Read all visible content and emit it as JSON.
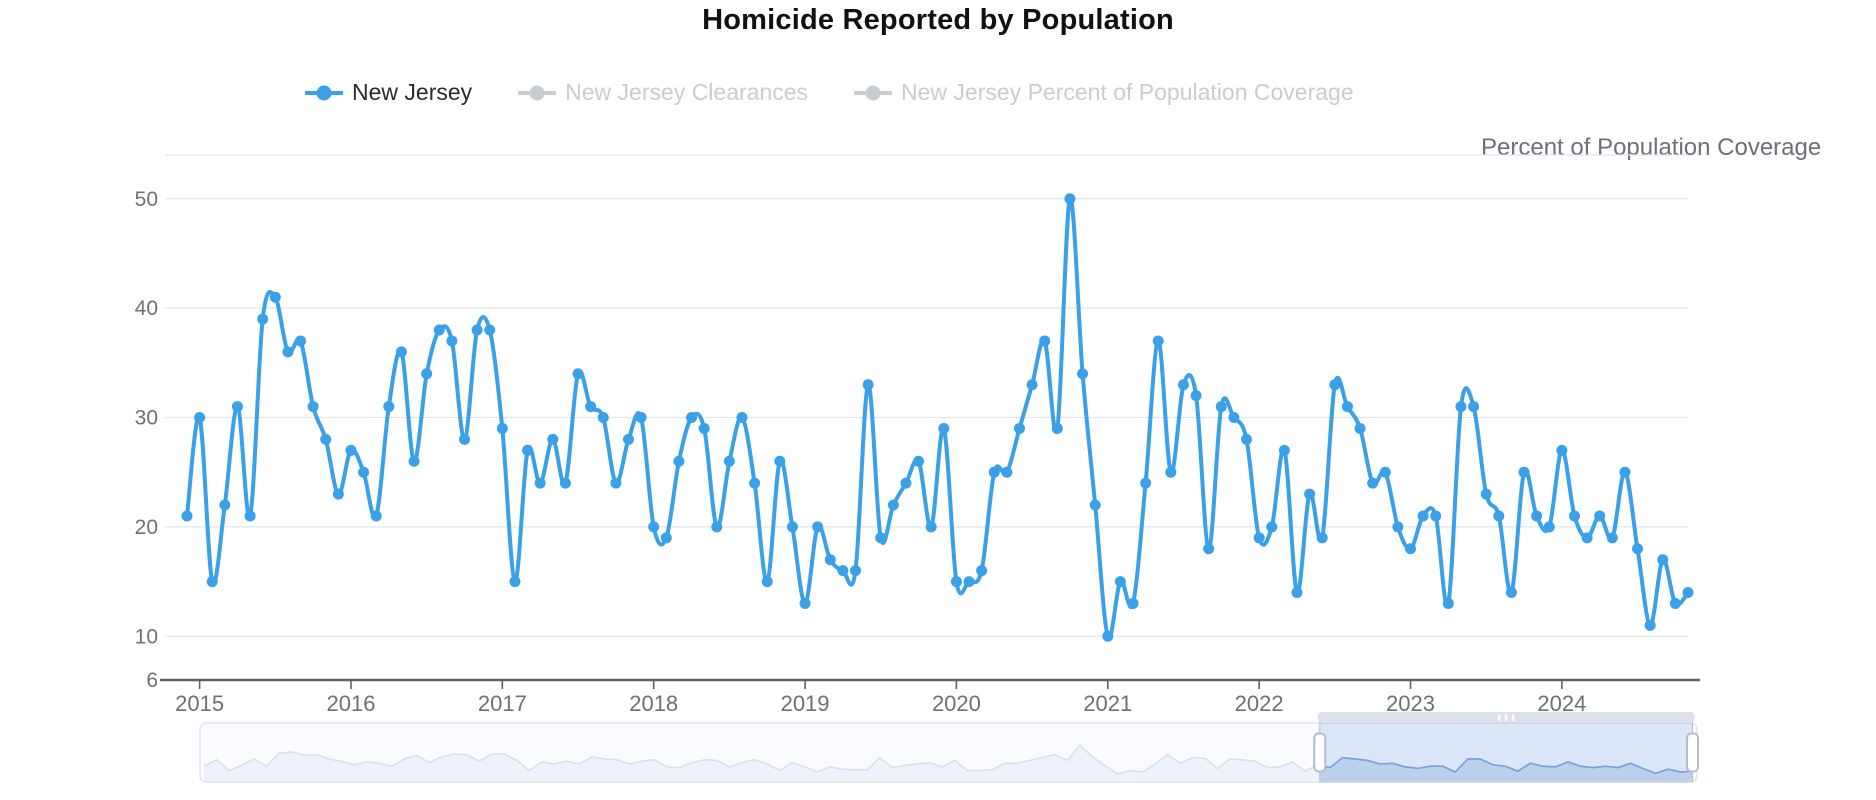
{
  "title": "Homicide Reported by Population",
  "legend": {
    "items": [
      {
        "label": "New Jersey",
        "active": true
      },
      {
        "label": "New Jersey Clearances",
        "active": false
      },
      {
        "label": "New Jersey Percent of Population Coverage",
        "active": false
      }
    ]
  },
  "right_axis_title": "Percent of Population Coverage",
  "colors": {
    "series": "#3aa1e9",
    "legend_inactive": "#c8cdd1",
    "legend_active_text": "#2b2b2b",
    "axis_text": "#6E7079",
    "axis_line": "#5b6066",
    "gridline": "#E0E6F1",
    "slider_track_fill": "#fafbfe",
    "slider_track_border": "#e0e4f0",
    "slider_spark_pale": "#d8deef",
    "slider_spark_pale_fill": "#eef2fb",
    "slider_selection_fill": "#dbe6f8",
    "slider_spark_selected": "#7ba0d9",
    "slider_spark_selected_fill": "#bcd0ee",
    "slider_move_strip": "#dde1ec",
    "slider_handle_border": "#b3bdd1"
  },
  "chart_data": {
    "type": "line",
    "title": "Homicide Reported by Population",
    "series_name": "New Jersey",
    "xlabel": "",
    "ylabel": "",
    "right_axis_label": "Percent of Population Coverage",
    "grid": true,
    "legend_position": "top",
    "y_ticks": [
      6,
      10,
      20,
      30,
      40,
      50
    ],
    "y_axis_min": 6,
    "y_axis_max": 54,
    "x_tick_labels": [
      "2015",
      "2016",
      "2017",
      "2018",
      "2019",
      "2020",
      "2021",
      "2022",
      "2023",
      "2024"
    ],
    "x_months": [
      "2015-01",
      "2015-02",
      "2015-03",
      "2015-04",
      "2015-05",
      "2015-06",
      "2015-07",
      "2015-08",
      "2015-09",
      "2015-10",
      "2015-11",
      "2015-12",
      "2016-01",
      "2016-02",
      "2016-03",
      "2016-04",
      "2016-05",
      "2016-06",
      "2016-07",
      "2016-08",
      "2016-09",
      "2016-10",
      "2016-11",
      "2016-12",
      "2017-01",
      "2017-02",
      "2017-03",
      "2017-04",
      "2017-05",
      "2017-06",
      "2017-07",
      "2017-08",
      "2017-09",
      "2017-10",
      "2017-11",
      "2017-12",
      "2018-01",
      "2018-02",
      "2018-03",
      "2018-04",
      "2018-05",
      "2018-06",
      "2018-07",
      "2018-08",
      "2018-09",
      "2018-10",
      "2018-11",
      "2018-12",
      "2019-01",
      "2019-02",
      "2019-03",
      "2019-04",
      "2019-05",
      "2019-06",
      "2019-07",
      "2019-08",
      "2019-09",
      "2019-10",
      "2019-11",
      "2019-12",
      "2020-01",
      "2020-02",
      "2020-03",
      "2020-04",
      "2020-05",
      "2020-06",
      "2020-07",
      "2020-08",
      "2020-09",
      "2020-10",
      "2020-11",
      "2020-12",
      "2021-01",
      "2021-02",
      "2021-03",
      "2021-04",
      "2021-05",
      "2021-06",
      "2021-07",
      "2021-08",
      "2021-09",
      "2021-10",
      "2021-11",
      "2021-12",
      "2022-01",
      "2022-02",
      "2022-03",
      "2022-04",
      "2022-05",
      "2022-06",
      "2022-07",
      "2022-08",
      "2022-09",
      "2022-10",
      "2022-11",
      "2022-12",
      "2023-01",
      "2023-02",
      "2023-03",
      "2023-04",
      "2023-05",
      "2023-06",
      "2023-07",
      "2023-08",
      "2023-09",
      "2023-10",
      "2023-11",
      "2023-12",
      "2024-01",
      "2024-02",
      "2024-03",
      "2024-04",
      "2024-05",
      "2024-06",
      "2024-07",
      "2024-08",
      "2024-09",
      "2024-10",
      "2024-11",
      "2024-12"
    ],
    "values": [
      21,
      30,
      15,
      22,
      31,
      21,
      39,
      41,
      36,
      37,
      31,
      28,
      23,
      27,
      25,
      21,
      31,
      36,
      26,
      34,
      38,
      37,
      28,
      38,
      38,
      29,
      15,
      27,
      24,
      28,
      24,
      34,
      31,
      30,
      24,
      28,
      30,
      20,
      19,
      26,
      30,
      29,
      20,
      26,
      30,
      24,
      15,
      26,
      20,
      13,
      20,
      17,
      16,
      16,
      33,
      19,
      22,
      24,
      26,
      20,
      29,
      15,
      15,
      16,
      25,
      25,
      29,
      33,
      37,
      29,
      50,
      34,
      22,
      10,
      15,
      13,
      24,
      37,
      25,
      33,
      32,
      18,
      31,
      30,
      28,
      19,
      20,
      27,
      14,
      23,
      19,
      33,
      31,
      29,
      24,
      25,
      20,
      18,
      21,
      21,
      13,
      31,
      31,
      23,
      21,
      14,
      25,
      21,
      20,
      27,
      21,
      19,
      21,
      19,
      25,
      18,
      11,
      17,
      13,
      14
    ],
    "slider": {
      "window_start_pct": 74.8,
      "window_end_pct": 99.7
    }
  }
}
